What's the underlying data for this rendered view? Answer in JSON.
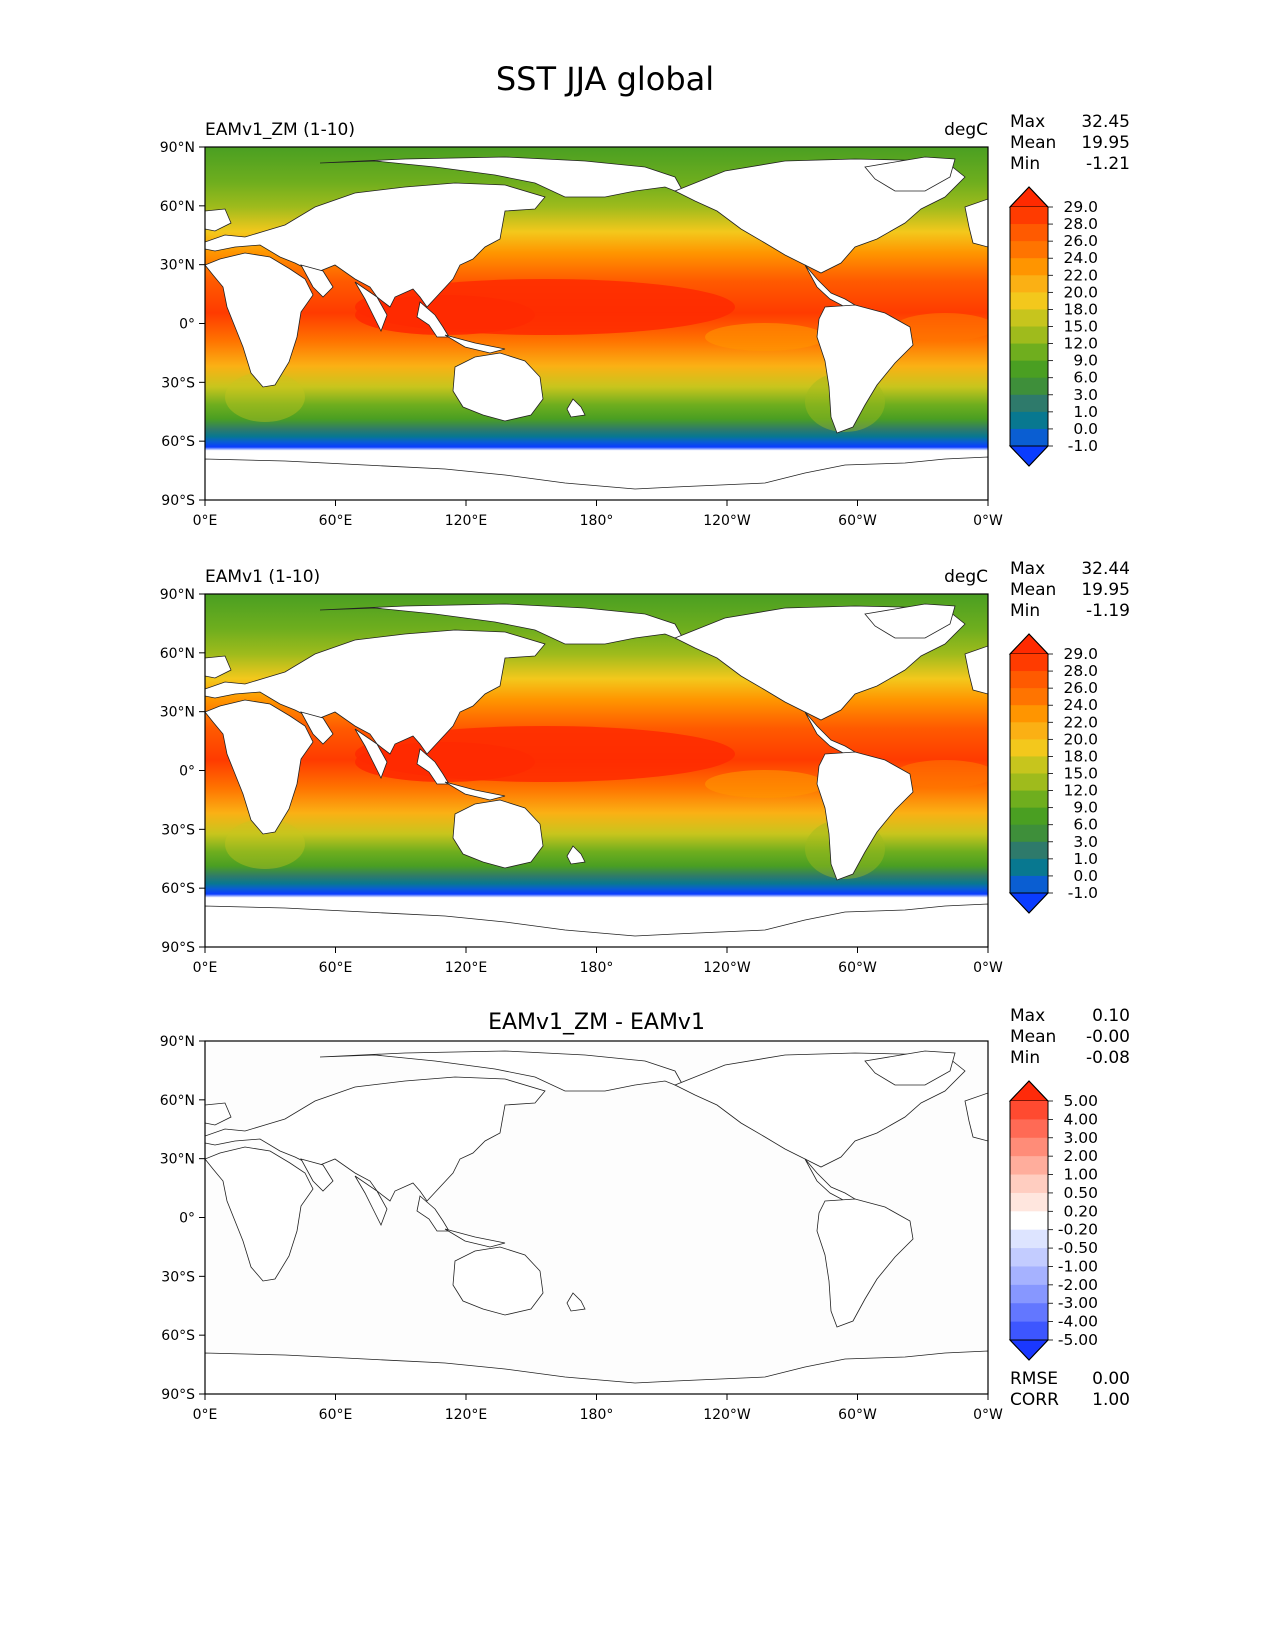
{
  "title": "SST JJA global",
  "axes": {
    "lat_ticks": [
      "90°N",
      "60°N",
      "30°N",
      "0°",
      "30°S",
      "60°S",
      "90°S"
    ],
    "lon_ticks": [
      "0°E",
      "60°E",
      "120°E",
      "180°",
      "120°W",
      "60°W",
      "0°W"
    ]
  },
  "panels": [
    {
      "label": "EAMv1_ZM (1-10)",
      "units": "degC",
      "centered": false,
      "stats": [
        {
          "name": "Max",
          "value": "32.45"
        },
        {
          "name": "Mean",
          "value": "19.95"
        },
        {
          "name": "Min",
          "value": "-1.21"
        }
      ],
      "colorbar": {
        "levels": [
          "29.0",
          "28.0",
          "26.0",
          "24.0",
          "22.0",
          "20.0",
          "18.0",
          "15.0",
          "12.0",
          "9.0",
          "6.0",
          "3.0",
          "1.0",
          "0.0",
          "-1.0"
        ],
        "colors": [
          "#ff2a00",
          "#ff3b00",
          "#ff5a00",
          "#ff7400",
          "#ff9500",
          "#fbb014",
          "#f3c81c",
          "#c7c51d",
          "#9fbb1c",
          "#6fae1e",
          "#4a9f22",
          "#3e8f3a",
          "#2e7a6b",
          "#087890",
          "#0a5ed2",
          "#0a3cff"
        ]
      },
      "extra": []
    },
    {
      "label": "EAMv1 (1-10)",
      "units": "degC",
      "centered": false,
      "stats": [
        {
          "name": "Max",
          "value": "32.44"
        },
        {
          "name": "Mean",
          "value": "19.95"
        },
        {
          "name": "Min",
          "value": "-1.19"
        }
      ],
      "colorbar": {
        "levels": [
          "29.0",
          "28.0",
          "26.0",
          "24.0",
          "22.0",
          "20.0",
          "18.0",
          "15.0",
          "12.0",
          "9.0",
          "6.0",
          "3.0",
          "1.0",
          "0.0",
          "-1.0"
        ],
        "colors": [
          "#ff2a00",
          "#ff3b00",
          "#ff5a00",
          "#ff7400",
          "#ff9500",
          "#fbb014",
          "#f3c81c",
          "#c7c51d",
          "#9fbb1c",
          "#6fae1e",
          "#4a9f22",
          "#3e8f3a",
          "#2e7a6b",
          "#087890",
          "#0a5ed2",
          "#0a3cff"
        ]
      },
      "extra": []
    },
    {
      "label": "EAMv1_ZM - EAMv1",
      "units": "",
      "centered": true,
      "stats": [
        {
          "name": "Max",
          "value": "0.10"
        },
        {
          "name": "Mean",
          "value": "-0.00"
        },
        {
          "name": "Min",
          "value": "-0.08"
        }
      ],
      "colorbar": {
        "levels": [
          "5.00",
          "4.00",
          "3.00",
          "2.00",
          "1.00",
          "0.50",
          "0.20",
          "-0.20",
          "-0.50",
          "-1.00",
          "-2.00",
          "-3.00",
          "-4.00",
          "-5.00"
        ],
        "colors": [
          "#ff2a0a",
          "#ff4a30",
          "#ff6a55",
          "#ff8c78",
          "#ffad9c",
          "#ffcdc0",
          "#ffe6de",
          "#ffffff",
          "#dde4ff",
          "#c3ccff",
          "#a6b2ff",
          "#8797ff",
          "#6377ff",
          "#3d56ff",
          "#1a38ff"
        ]
      },
      "extra": [
        {
          "name": "RMSE",
          "value": "0.00"
        },
        {
          "name": "CORR",
          "value": "1.00"
        }
      ]
    }
  ],
  "chart_data": {
    "type": "heatmap",
    "title": "SST JJA global",
    "variable": "SST",
    "season": "JJA",
    "units": "degC",
    "xlim": [
      0,
      360
    ],
    "ylim": [
      -90,
      90
    ],
    "x_ticks": [
      0,
      60,
      120,
      180,
      240,
      300,
      360
    ],
    "y_ticks": [
      90,
      60,
      30,
      0,
      -30,
      -60,
      -90
    ],
    "series": [
      {
        "name": "EAMv1_ZM (1-10)",
        "max": 32.45,
        "mean": 19.95,
        "min": -1.21
      },
      {
        "name": "EAMv1 (1-10)",
        "max": 32.44,
        "mean": 19.95,
        "min": -1.19
      },
      {
        "name": "EAMv1_ZM - EAMv1",
        "max": 0.1,
        "mean": -0.0,
        "min": -0.08,
        "rmse": 0.0,
        "corr": 1.0
      }
    ]
  }
}
